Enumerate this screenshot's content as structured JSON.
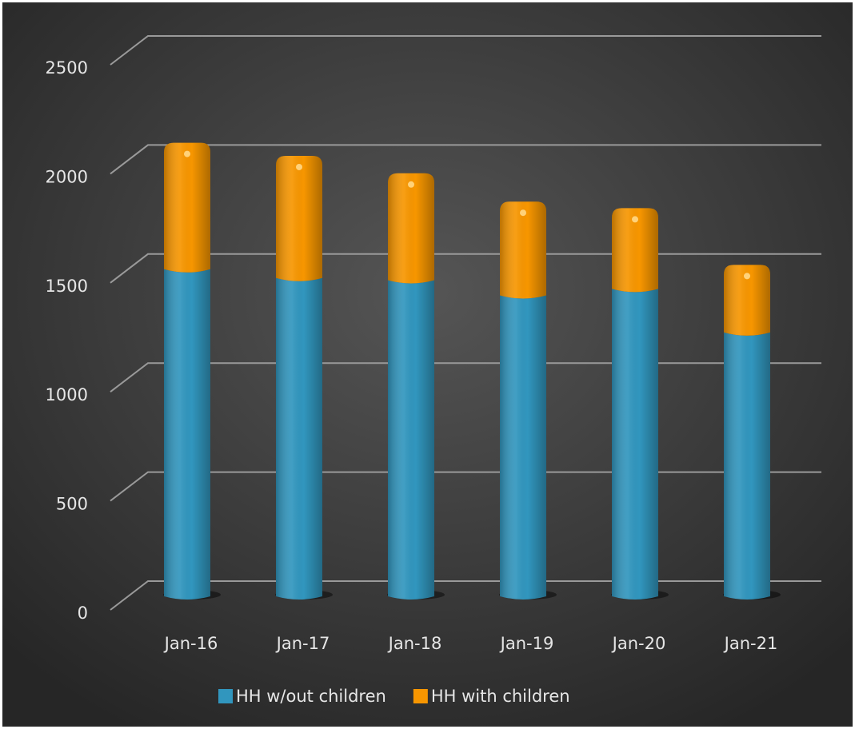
{
  "chart_data": {
    "type": "bar",
    "stacked": true,
    "categories": [
      "Jan-16",
      "Jan-17",
      "Jan-18",
      "Jan-19",
      "Jan-20",
      "Jan-21"
    ],
    "series": [
      {
        "name": "HH w/out children",
        "color": "#3196be",
        "values": [
          1500,
          1460,
          1450,
          1380,
          1410,
          1210
        ]
      },
      {
        "name": "HH with children",
        "color": "#f79600",
        "values": [
          580,
          560,
          490,
          430,
          370,
          310
        ]
      }
    ],
    "ylim": [
      0,
      2500
    ],
    "yticks": [
      0,
      500,
      1000,
      1500,
      2000,
      2500
    ],
    "grid": true,
    "legend": "bottom"
  }
}
